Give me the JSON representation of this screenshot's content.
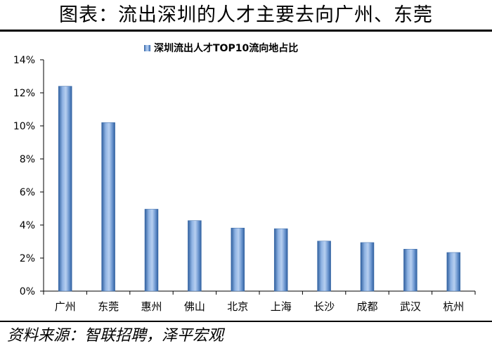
{
  "header": {
    "title": "图表：流出深圳的人才主要去向广州、东莞"
  },
  "footer": {
    "source": "资料来源：智联招聘，泽平宏观"
  },
  "chart_data": {
    "type": "bar",
    "title": "",
    "xlabel": "",
    "ylabel": "",
    "legend_position": "top",
    "categories": [
      "广州",
      "东莞",
      "惠州",
      "佛山",
      "北京",
      "上海",
      "长沙",
      "成都",
      "武汉",
      "杭州"
    ],
    "series": [
      {
        "name": "深圳流出人才TOP10流向地占比",
        "values": [
          12.4,
          10.2,
          4.96,
          4.27,
          3.82,
          3.78,
          3.03,
          2.94,
          2.54,
          2.34
        ],
        "color": "#4f81bd"
      }
    ],
    "yticks": [
      "0%",
      "2%",
      "4%",
      "6%",
      "8%",
      "10%",
      "12%",
      "14%"
    ],
    "ylim": [
      0,
      14
    ],
    "grid": false
  }
}
